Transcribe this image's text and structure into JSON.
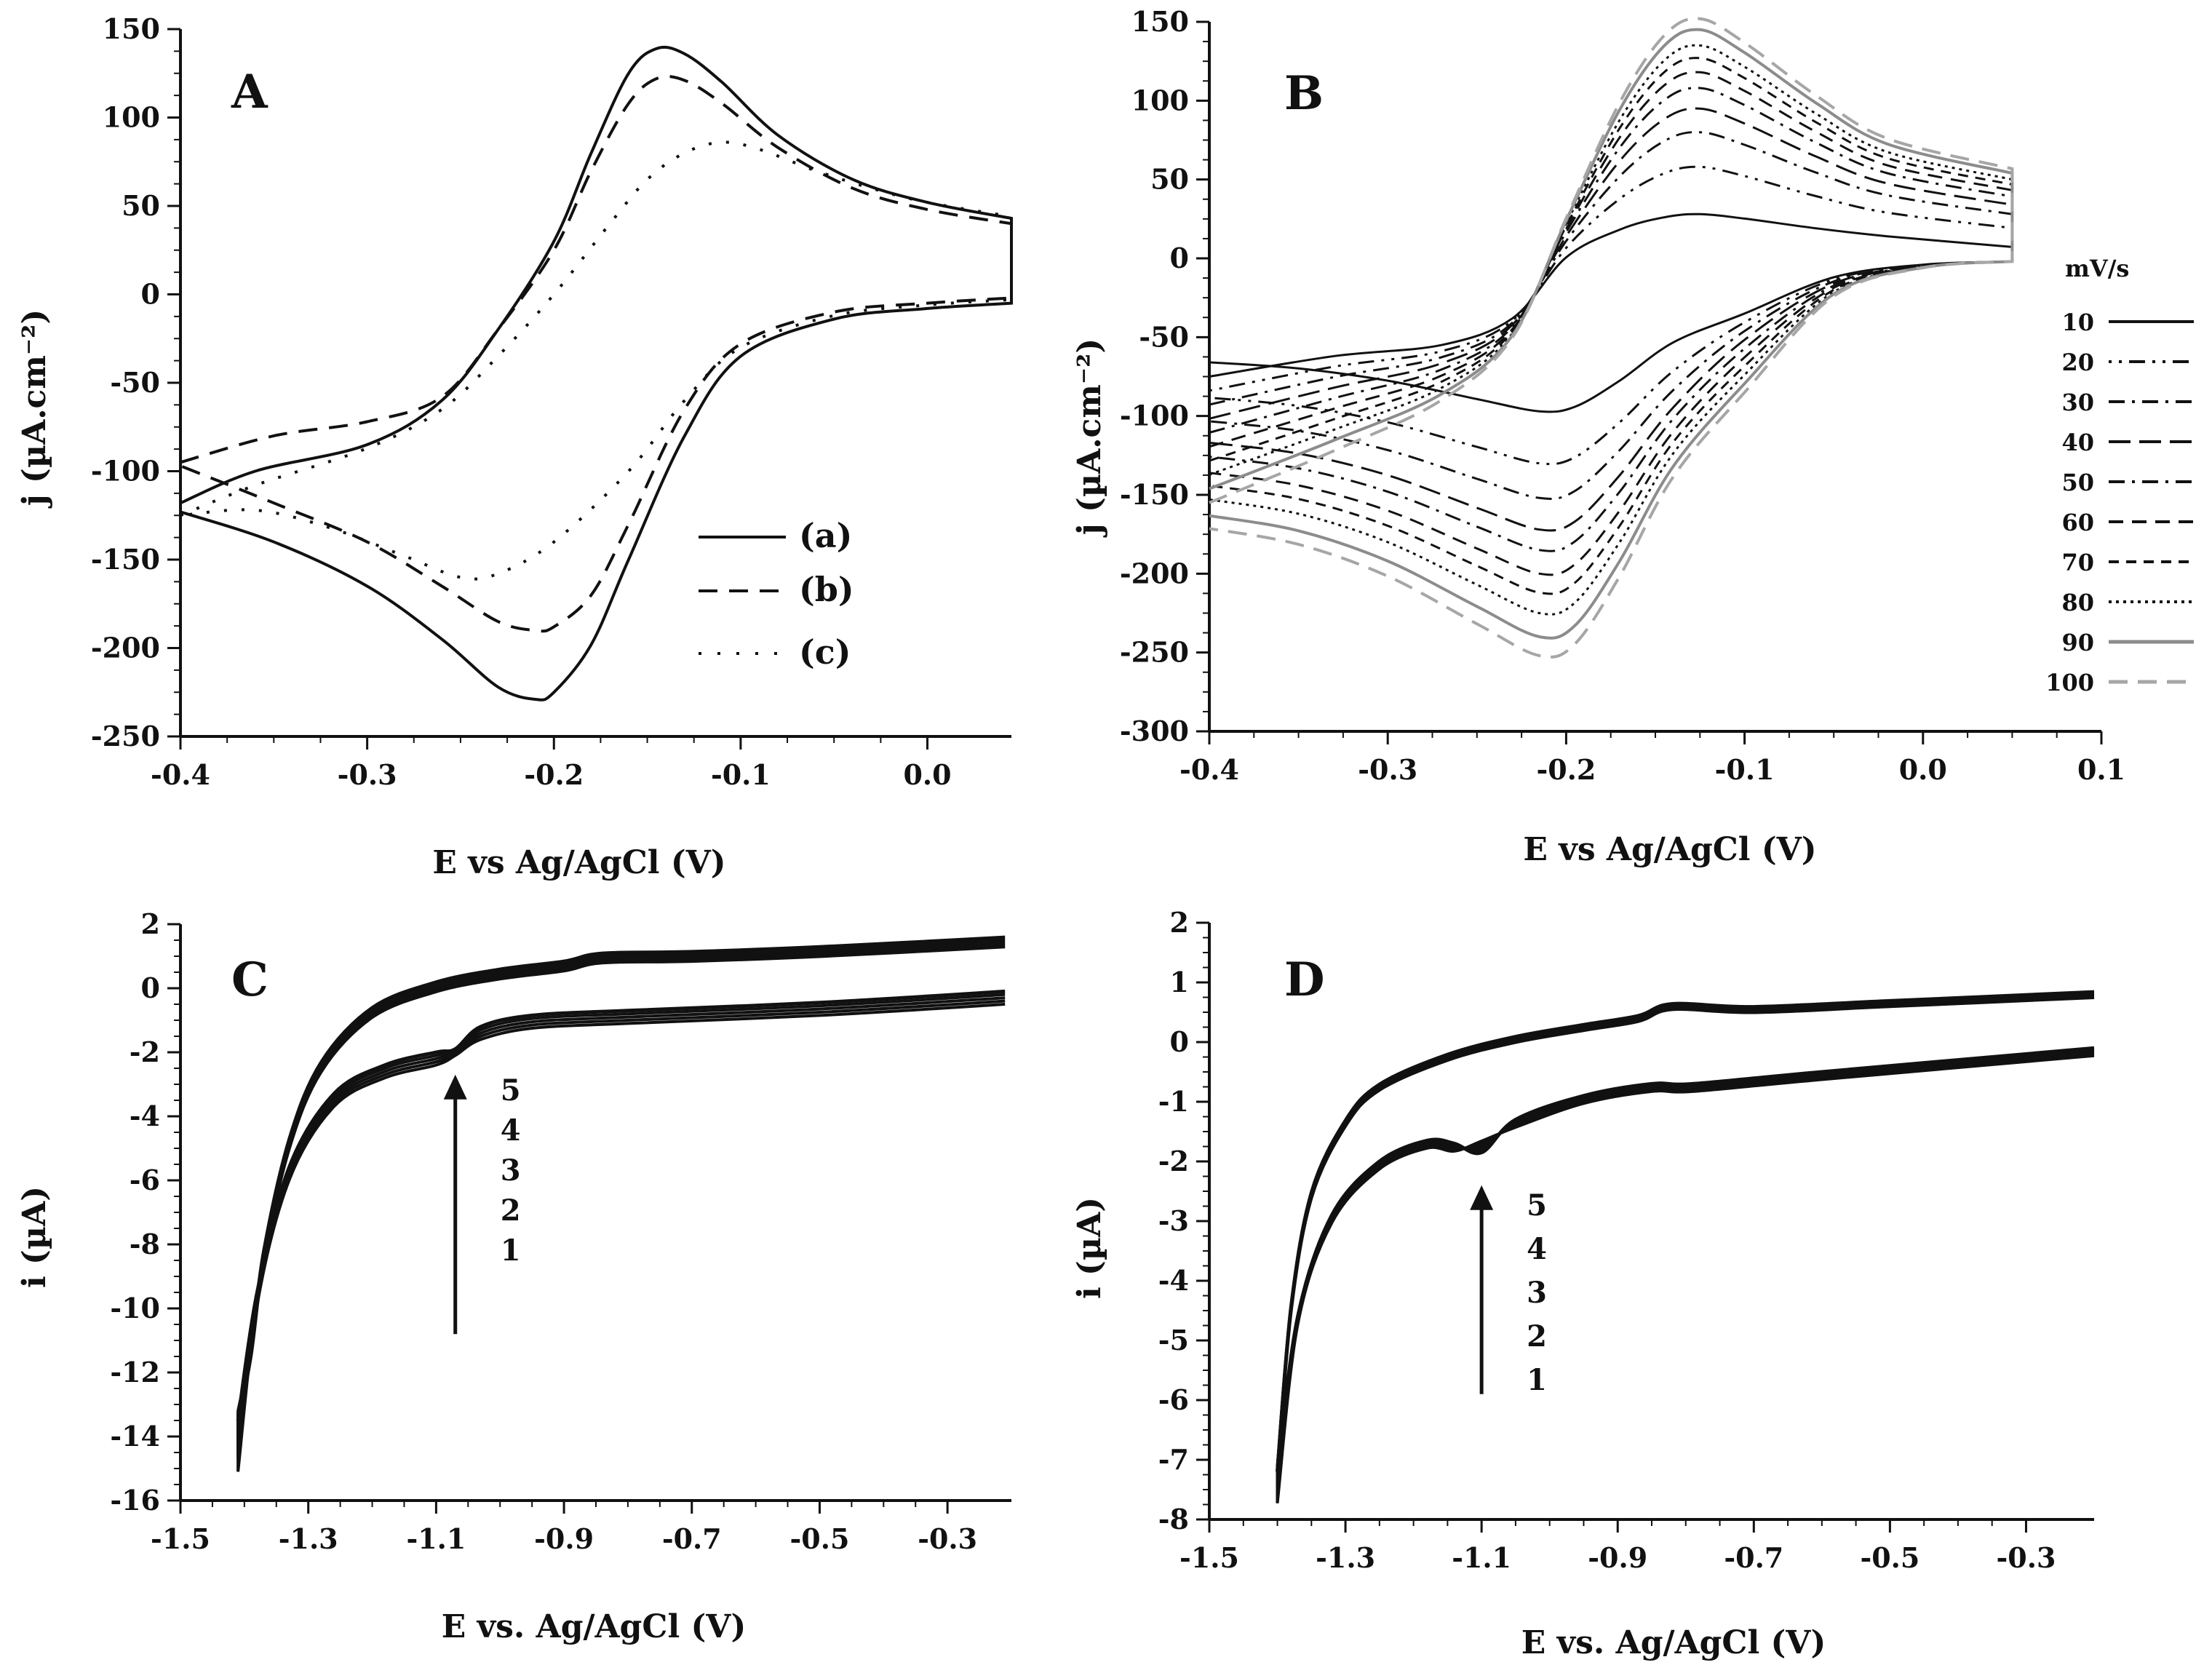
{
  "chart_data": [
    {
      "type": "line",
      "panel_label": "A",
      "xlabel": "E vs Ag/AgCl (V)",
      "ylabel": "j (µA.cm⁻²)",
      "xlim": [
        -0.4,
        0.045
      ],
      "ylim": [
        -250,
        150
      ],
      "xticks": [
        -0.4,
        -0.3,
        -0.2,
        -0.1,
        0.0
      ],
      "xtick_labels": [
        "-0.4",
        "-0.3",
        "-0.2",
        "-0.1",
        "0.0"
      ],
      "yticks": [
        -250,
        -200,
        -150,
        -100,
        -50,
        0,
        50,
        100,
        150
      ],
      "ytick_labels": [
        "-250",
        "-200",
        "-150",
        "-100",
        "-50",
        "0",
        "50",
        "100",
        "150"
      ],
      "legend": [
        "(a)",
        "(b)",
        "(c)"
      ],
      "legend_position": "center-right",
      "series": [
        {
          "name": "(a)",
          "dash": "solid",
          "color": "#111111",
          "anodic": [
            [
              -0.4,
              -118
            ],
            [
              -0.36,
              -100
            ],
            [
              -0.3,
              -85
            ],
            [
              -0.26,
              -60
            ],
            [
              -0.23,
              -20
            ],
            [
              -0.2,
              30
            ],
            [
              -0.18,
              80
            ],
            [
              -0.16,
              125
            ],
            [
              -0.145,
              139
            ],
            [
              -0.13,
              136
            ],
            [
              -0.11,
              120
            ],
            [
              -0.08,
              90
            ],
            [
              -0.04,
              65
            ],
            [
              0.0,
              52
            ],
            [
              0.045,
              43
            ]
          ],
          "cathodic": [
            [
              0.045,
              -5
            ],
            [
              0.0,
              -8
            ],
            [
              -0.05,
              -14
            ],
            [
              -0.1,
              -35
            ],
            [
              -0.13,
              -80
            ],
            [
              -0.16,
              -150
            ],
            [
              -0.18,
              -198
            ],
            [
              -0.2,
              -225
            ],
            [
              -0.21,
              -229
            ],
            [
              -0.23,
              -222
            ],
            [
              -0.26,
              -195
            ],
            [
              -0.3,
              -165
            ],
            [
              -0.35,
              -140
            ],
            [
              -0.4,
              -123
            ]
          ]
        },
        {
          "name": "(b)",
          "dash": "long-dash",
          "color": "#111111",
          "anodic": [
            [
              -0.4,
              -95
            ],
            [
              -0.35,
              -80
            ],
            [
              -0.3,
              -72
            ],
            [
              -0.26,
              -58
            ],
            [
              -0.23,
              -20
            ],
            [
              -0.2,
              25
            ],
            [
              -0.18,
              70
            ],
            [
              -0.16,
              108
            ],
            [
              -0.145,
              122
            ],
            [
              -0.13,
              121
            ],
            [
              -0.11,
              108
            ],
            [
              -0.08,
              83
            ],
            [
              -0.04,
              60
            ],
            [
              0.0,
              48
            ],
            [
              0.045,
              40
            ]
          ],
          "cathodic": [
            [
              0.045,
              -2
            ],
            [
              0.0,
              -5
            ],
            [
              -0.05,
              -10
            ],
            [
              -0.1,
              -28
            ],
            [
              -0.13,
              -65
            ],
            [
              -0.16,
              -130
            ],
            [
              -0.18,
              -170
            ],
            [
              -0.2,
              -188
            ],
            [
              -0.21,
              -190
            ],
            [
              -0.23,
              -185
            ],
            [
              -0.26,
              -165
            ],
            [
              -0.3,
              -140
            ],
            [
              -0.35,
              -118
            ],
            [
              -0.4,
              -97
            ]
          ]
        },
        {
          "name": "(c)",
          "dash": "dotted",
          "color": "#111111",
          "anodic": [
            [
              -0.4,
              -125
            ],
            [
              -0.36,
              -108
            ],
            [
              -0.3,
              -87
            ],
            [
              -0.26,
              -65
            ],
            [
              -0.23,
              -35
            ],
            [
              -0.2,
              0
            ],
            [
              -0.17,
              40
            ],
            [
              -0.15,
              65
            ],
            [
              -0.13,
              80
            ],
            [
              -0.11,
              86
            ],
            [
              -0.09,
              82
            ],
            [
              -0.06,
              70
            ],
            [
              -0.03,
              60
            ],
            [
              0.0,
              52
            ],
            [
              0.045,
              44
            ]
          ],
          "cathodic": [
            [
              0.045,
              -3
            ],
            [
              0.0,
              -6
            ],
            [
              -0.05,
              -12
            ],
            [
              -0.1,
              -30
            ],
            [
              -0.13,
              -60
            ],
            [
              -0.16,
              -100
            ],
            [
              -0.2,
              -140
            ],
            [
              -0.23,
              -158
            ],
            [
              -0.25,
              -160
            ],
            [
              -0.28,
              -148
            ],
            [
              -0.32,
              -132
            ],
            [
              -0.36,
              -122
            ],
            [
              -0.4,
              -125
            ]
          ]
        }
      ]
    },
    {
      "type": "line",
      "panel_label": "B",
      "xlabel": "E vs Ag/AgCl (V)",
      "ylabel": "j (µA.cm⁻²)",
      "xlim": [
        -0.4,
        0.1
      ],
      "ylim": [
        -300,
        150
      ],
      "xticks": [
        -0.4,
        -0.3,
        -0.2,
        -0.1,
        0.0,
        0.1
      ],
      "xtick_labels": [
        "-0.4",
        "-0.3",
        "-0.2",
        "-0.1",
        "0.0",
        "0.1"
      ],
      "yticks": [
        -300,
        -250,
        -200,
        -150,
        -100,
        -50,
        0,
        50,
        100,
        150
      ],
      "ytick_labels": [
        "-300",
        "-250",
        "-200",
        "-150",
        "-100",
        "-50",
        "0",
        "50",
        "100",
        "150"
      ],
      "legend_title": "mV/s",
      "legend_position": "right",
      "scan_rates": [
        "10",
        "20",
        "30",
        "40",
        "50",
        "60",
        "70",
        "80",
        "90",
        "100"
      ],
      "anodic_peak_values": [
        28,
        58,
        80,
        95,
        108,
        118,
        127,
        135,
        145,
        152
      ],
      "cathodic_peak_values": [
        -97,
        -130,
        -152,
        -172,
        -185,
        -200,
        -212,
        -225,
        -240,
        -252
      ],
      "series_colors": [
        "#111111",
        "#111111",
        "#111111",
        "#111111",
        "#111111",
        "#111111",
        "#111111",
        "#111111",
        "#8c8c8c",
        "#a6a6a6"
      ]
    },
    {
      "type": "line",
      "panel_label": "C",
      "xlabel": "E vs. Ag/AgCl (V)",
      "ylabel": "i (µA)",
      "xlim": [
        -1.5,
        -0.2
      ],
      "ylim": [
        -16,
        2
      ],
      "xticks": [
        -1.5,
        -1.3,
        -1.1,
        -0.9,
        -0.7,
        -0.5,
        -0.3
      ],
      "xtick_labels": [
        "-1.5",
        "-1.3",
        "-1.1",
        "-0.9",
        "-0.7",
        "-0.5",
        "-0.3"
      ],
      "yticks": [
        -16,
        -14,
        -12,
        -10,
        -8,
        -6,
        -4,
        -2,
        0,
        2
      ],
      "ytick_labels": [
        "-16",
        "-14",
        "-12",
        "-10",
        "-8",
        "-6",
        "-4",
        "-2",
        "0",
        "2"
      ],
      "cycle_labels": [
        "5",
        "4",
        "3",
        "2",
        "1"
      ],
      "arrow": {
        "x": -1.07,
        "from_y": -10.8,
        "to_y": -2.7
      }
    },
    {
      "type": "line",
      "panel_label": "D",
      "xlabel": "E vs. Ag/AgCl (V)",
      "ylabel": "i (µA)",
      "xlim": [
        -1.5,
        -0.2
      ],
      "ylim": [
        -8,
        2
      ],
      "xticks": [
        -1.5,
        -1.3,
        -1.1,
        -0.9,
        -0.7,
        -0.5,
        -0.3
      ],
      "xtick_labels": [
        "-1.5",
        "-1.3",
        "-1.1",
        "-0.9",
        "-0.7",
        "-0.5",
        "-0.3"
      ],
      "yticks": [
        -8,
        -7,
        -6,
        -5,
        -4,
        -3,
        -2,
        -1,
        0,
        1,
        2
      ],
      "ytick_labels": [
        "-8",
        "-7",
        "-6",
        "-5",
        "-4",
        "-3",
        "-2",
        "-1",
        "0",
        "1",
        "2"
      ],
      "cycle_labels": [
        "5",
        "4",
        "3",
        "2",
        "1"
      ],
      "arrow": {
        "x": -1.1,
        "from_y": -5.9,
        "to_y": -2.4
      }
    }
  ]
}
